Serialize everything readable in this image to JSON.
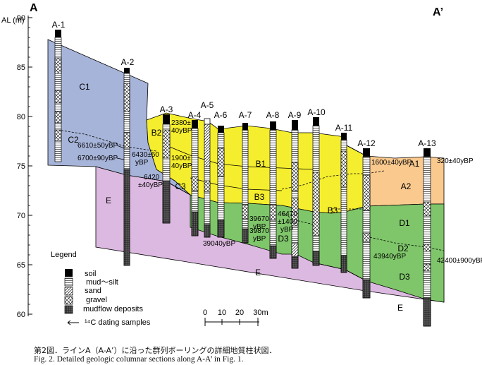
{
  "section_labels": {
    "start": "A",
    "end": "A’"
  },
  "y_axis": {
    "label": "AL (m)",
    "ticks": [
      "90",
      "85",
      "80",
      "75",
      "70",
      "65",
      "60"
    ]
  },
  "boreholes": [
    "A-1",
    "A-2",
    "A-3",
    "A-4",
    "A-5",
    "A-6",
    "A-7",
    "A-8",
    "A-9",
    "A-10",
    "A-11",
    "A-12",
    "A-13"
  ],
  "units": {
    "C1": "C1",
    "C2": "C2",
    "C3": "C3",
    "B2": "B2",
    "B1": "B1",
    "B3a": "B3",
    "B3b": "B3",
    "D3a": "D3",
    "A1": "A1",
    "A2": "A2",
    "D1": "D1",
    "D2": "D2",
    "D3b": "D3",
    "Ea": "E",
    "Eb": "E",
    "Ec": "E"
  },
  "dates": {
    "d1": "6610±50yBP",
    "d2": "6700±90yBP",
    "d3a": "6430±60",
    "d3b": "yBP",
    "d4a": "6420",
    "d4b": "±40yBP",
    "d5a": "2380±",
    "d5b": "40yBP",
    "d6a": "1900±",
    "d6b": "40yBP",
    "d7": "39040yBP",
    "d8a": "39670",
    "d8b": "yBP",
    "d9a": "39870",
    "d9b": "yBP",
    "d10a": "46470",
    "d10b": "±1400",
    "d10c": "yBP",
    "d11": "1600±40yBP",
    "d12": "320±40yBP",
    "d13": "43940yBP",
    "d14": "42400±900yBP"
  },
  "legend": {
    "title": "Legend",
    "items": [
      "soil",
      "mud～silt",
      "sand",
      "gravel",
      "mudflow deposits",
      "¹⁴C dating samples"
    ]
  },
  "scale": {
    "ticks": [
      "0",
      "10",
      "20",
      "30m"
    ]
  },
  "caption_ja": "第2図．ラインA（A-A’）に沿った群列ボーリングの詳細地質柱状図．",
  "caption_en": "Fig. 2.  Detailed geologic columnar sections along A-A’ in Fig. 1.",
  "colors": {
    "blue": "#a7b4d9",
    "yellow": "#f5ee2e",
    "orange": "#f9c98e",
    "green": "#7fc66a",
    "purple": "#dcb9e0"
  }
}
